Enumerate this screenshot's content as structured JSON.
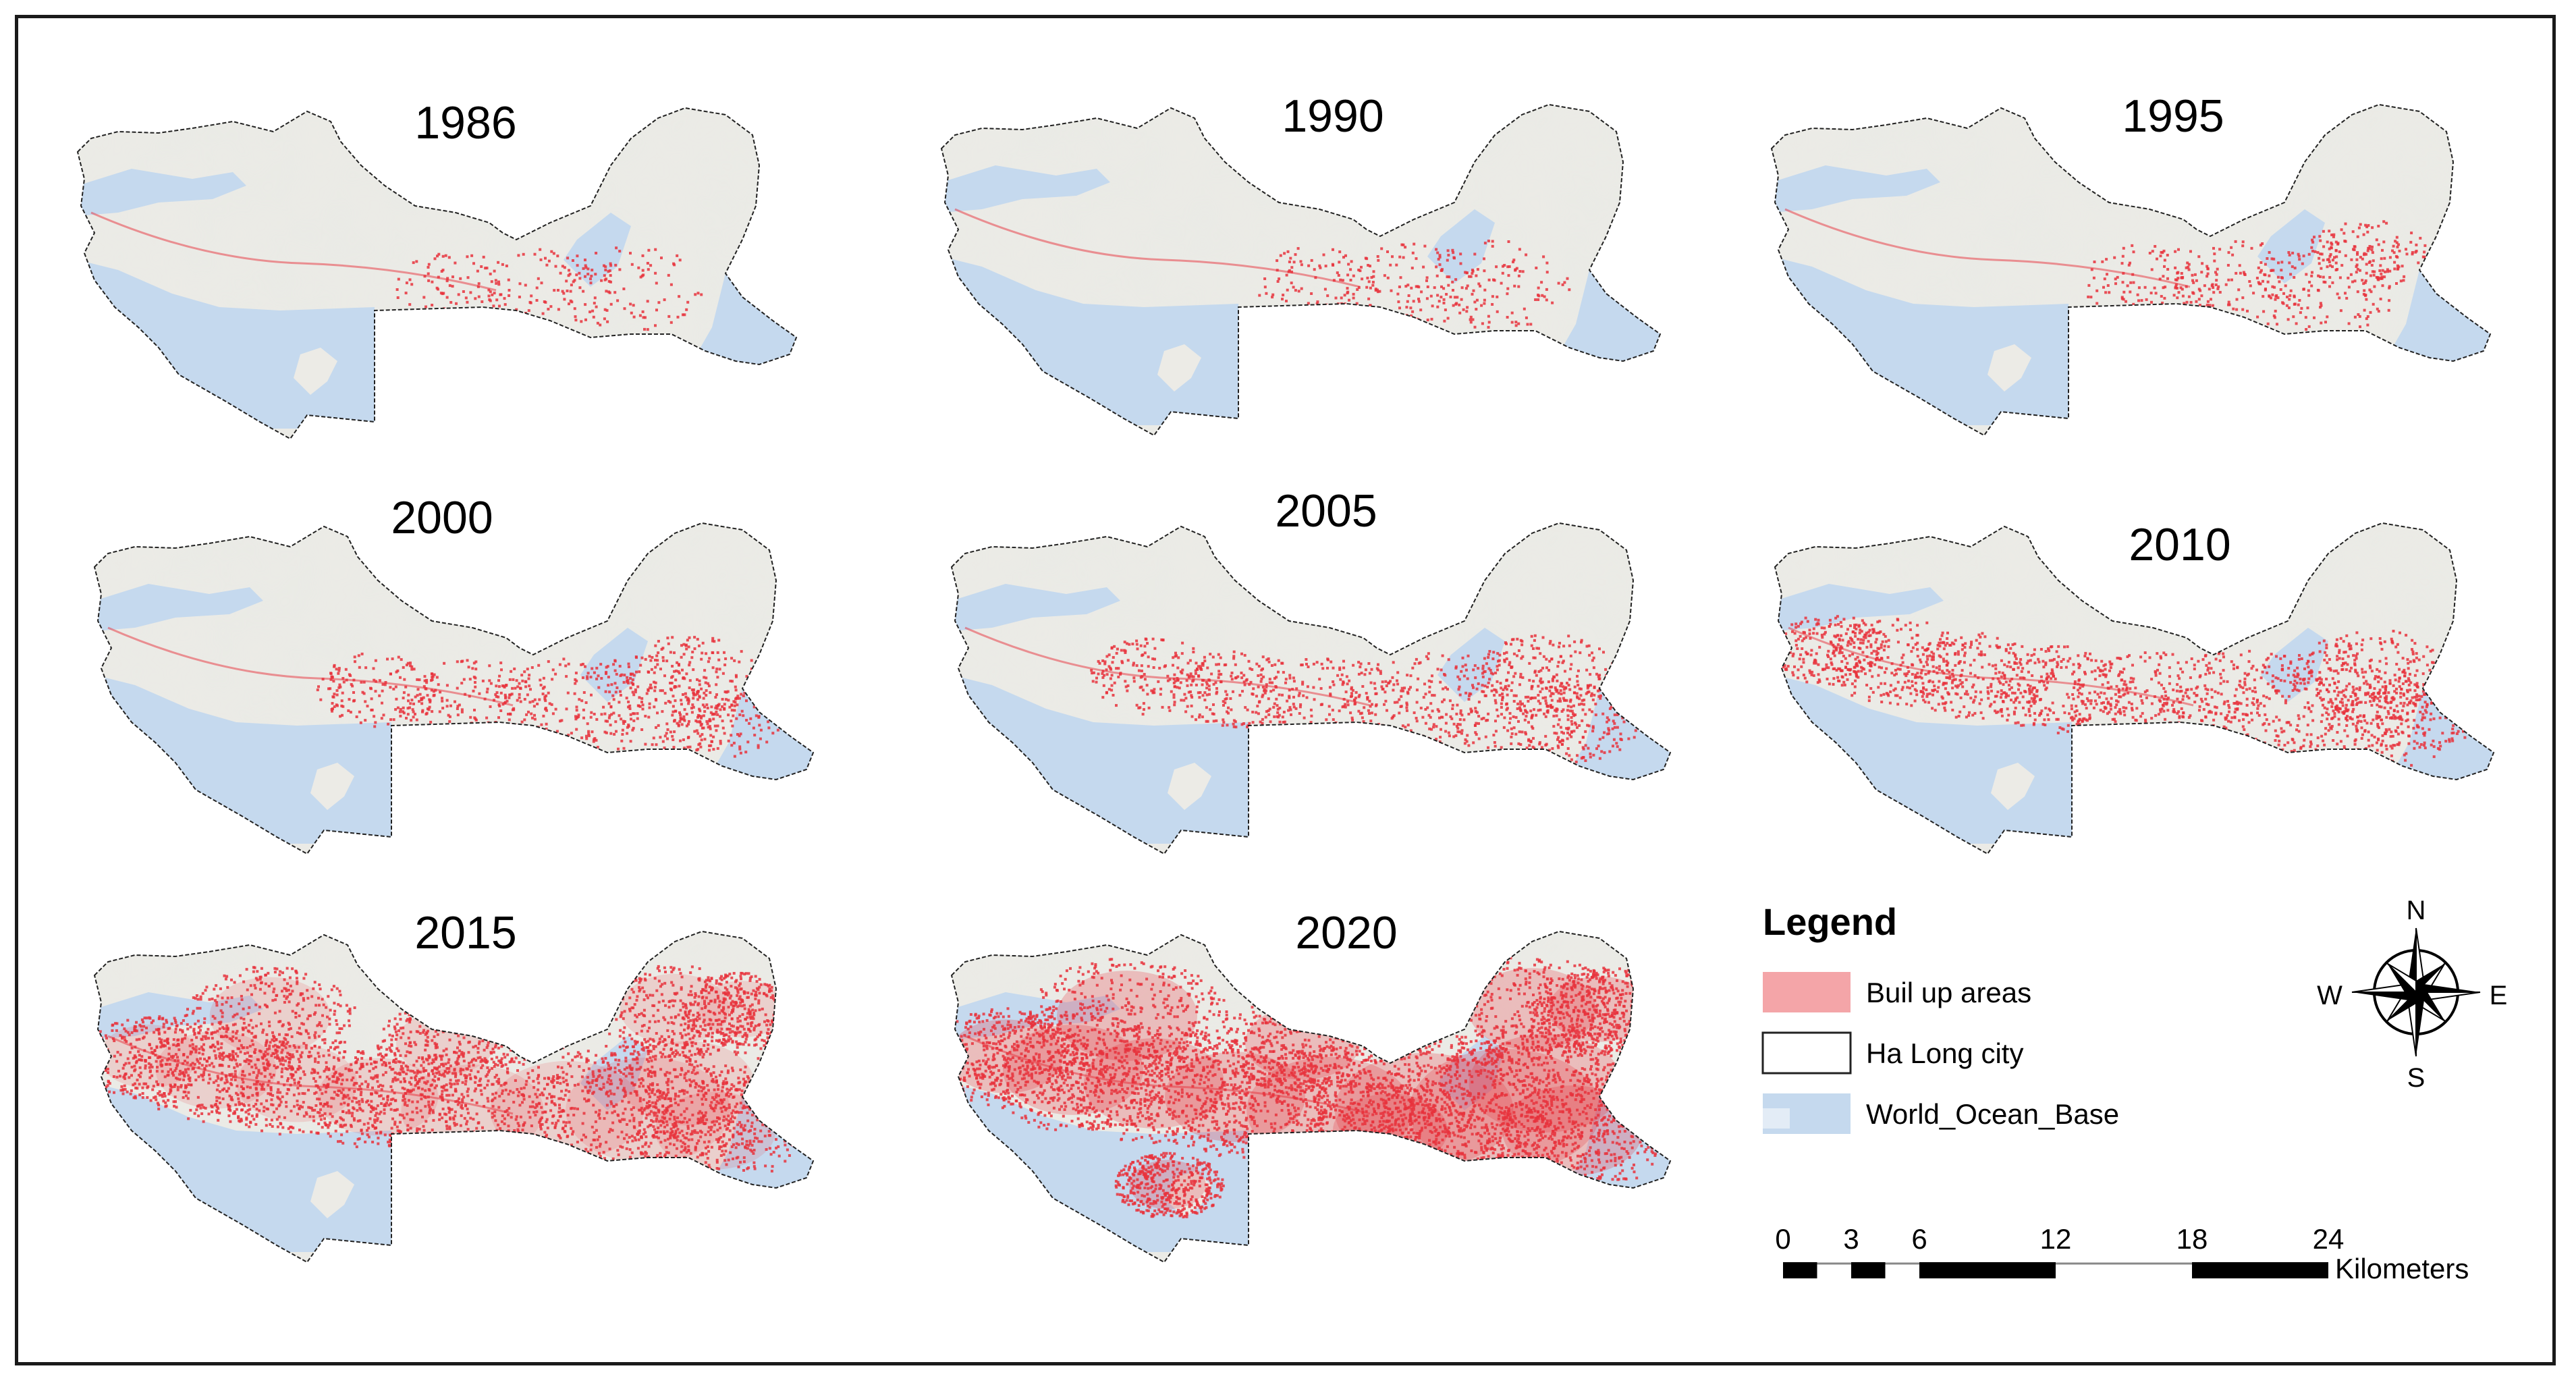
{
  "panels": [
    {
      "year": "1986",
      "built_up_level": 0.1
    },
    {
      "year": "1990",
      "built_up_level": 0.14
    },
    {
      "year": "1995",
      "built_up_level": 0.18
    },
    {
      "year": "2000",
      "built_up_level": 0.24
    },
    {
      "year": "2005",
      "built_up_level": 0.28
    },
    {
      "year": "2010",
      "built_up_level": 0.38
    },
    {
      "year": "2015",
      "built_up_level": 0.56
    },
    {
      "year": "2020",
      "built_up_level": 0.75
    }
  ],
  "legend": {
    "title": "Legend",
    "items": [
      {
        "label": "Buil up areas",
        "color": "#f4a5a8"
      },
      {
        "label": "Ha Long city",
        "color": "#ffffff"
      },
      {
        "label": "World_Ocean_Base",
        "color": "#c5d9ee"
      }
    ]
  },
  "north_arrow": {
    "n": "N",
    "s": "S",
    "e": "E",
    "w": "W"
  },
  "scale_bar": {
    "ticks": [
      "0",
      "3",
      "6",
      "12",
      "18",
      "24"
    ],
    "unit": "Kilometers"
  },
  "colors": {
    "land": "#ecebe6",
    "ocean": "#c5d9ee",
    "built_up": "#e8323c",
    "outline": "#222222"
  }
}
